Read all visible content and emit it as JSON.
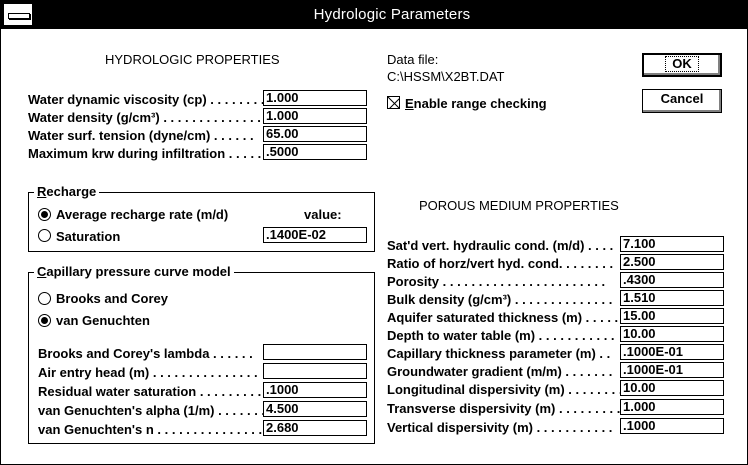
{
  "window": {
    "title": "Hydrologic Parameters"
  },
  "hydrologic": {
    "heading": "HYDROLOGIC PROPERTIES",
    "rows": [
      {
        "label": "Water dynamic viscosity (cp) . . . . . . . .",
        "value": "1.000"
      },
      {
        "label": "Water density (g/cm³) . . . . . . . . . . . . . .",
        "value": "1.000"
      },
      {
        "label": "Water surf. tension (dyne/cm) . . . . . .",
        "value": "65.00"
      },
      {
        "label": "Maximum krw during infiltration . . . . . .",
        "value": ".5000"
      }
    ]
  },
  "data_file": {
    "label": "Data file:",
    "path": "C:\\HSSM\\X2BT.DAT"
  },
  "range_checking": {
    "label_first": "E",
    "label_rest": "nable range checking",
    "checked": true
  },
  "buttons": {
    "ok": "OK",
    "cancel": "Cancel"
  },
  "recharge": {
    "legend_first": "R",
    "legend_rest": "echarge",
    "value_header": "value:",
    "options": [
      {
        "label": "Average recharge rate (m/d)",
        "selected": true
      },
      {
        "label": "Saturation",
        "selected": false
      }
    ],
    "value": ".1400E-02"
  },
  "capillary": {
    "legend_first": "C",
    "legend_rest": "apillary pressure curve model",
    "options": [
      {
        "label": "Brooks and Corey",
        "selected": false
      },
      {
        "label": "van Genuchten",
        "selected": true
      }
    ],
    "rows": [
      {
        "label": "Brooks and Corey's lambda . . . . . .",
        "value": ""
      },
      {
        "label": "Air entry head (m) . . . . . . . . . . . . . . .",
        "value": ""
      },
      {
        "label": "Residual water saturation . . . . . . . . .",
        "value": ".1000"
      },
      {
        "label": "van Genuchten's alpha (1/m) . . . . . . .",
        "value": "4.500"
      },
      {
        "label": "van Genuchten's n . . . . . . . . . . . . . . .",
        "value": "2.680"
      }
    ]
  },
  "porous": {
    "heading": "POROUS MEDIUM PROPERTIES",
    "rows": [
      {
        "label": "Sat'd vert. hydraulic cond. (m/d) . . . .",
        "value": "7.100"
      },
      {
        "label": "Ratio of horz/vert hyd. cond. . . . . . . .",
        "value": "2.500"
      },
      {
        "label": "Porosity . . . . . . . . . . . . . . . . . . . . . . .",
        "value": ".4300"
      },
      {
        "label": "Bulk density (g/cm³) . . . . . . . . . . . . . .",
        "value": "1.510"
      },
      {
        "label": "Aquifer saturated thickness (m) . . . . .",
        "value": "15.00"
      },
      {
        "label": "Depth to water table (m) . . . . . . . . . . .",
        "value": "10.00"
      },
      {
        "label": "Capillary thickness parameter (m) . .",
        "value": ".1000E-01"
      },
      {
        "label": "Groundwater gradient (m/m) . . . . . . .",
        "value": ".1000E-01"
      },
      {
        "label": "Longitudinal dispersivity (m) . . . . . . . .",
        "value": "10.00"
      },
      {
        "label": "Transverse dispersivity (m) . . . . . . . . .",
        "value": "1.000"
      },
      {
        "label": "Vertical dispersivity (m) . . . . . . . . . . .",
        "value": ".1000"
      }
    ]
  }
}
